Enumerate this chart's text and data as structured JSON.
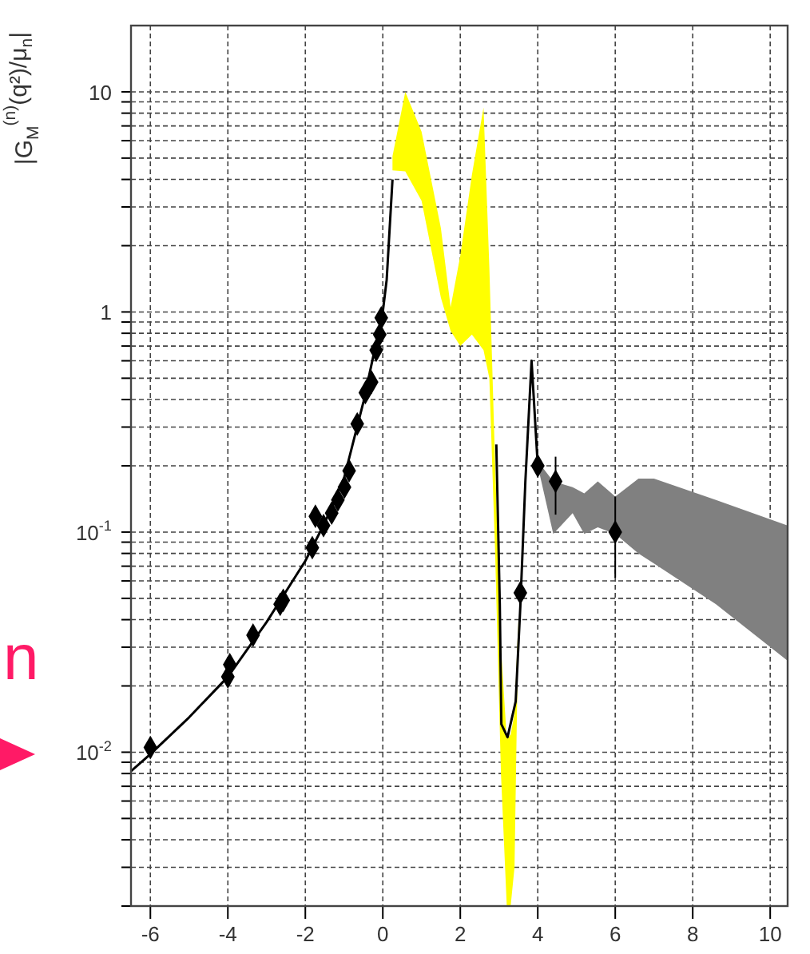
{
  "chart_data": {
    "type": "line",
    "ylabel": "|G$_{M}$$^{(n)}$(q²)/μ$_{n}$|",
    "annotations": [
      "n"
    ],
    "xlim": [
      -6.5,
      10.45
    ],
    "xticks": [
      -6,
      -4,
      -2,
      0,
      2,
      4,
      6,
      8,
      10
    ],
    "ylim": [
      0.002,
      20
    ],
    "log": "y",
    "grid": true,
    "yticks": [
      {
        "value": 0.002,
        "label": null
      },
      {
        "value": 0.003,
        "label": null
      },
      {
        "value": 0.004,
        "label": null
      },
      {
        "value": 0.005,
        "label": null
      },
      {
        "value": 0.006,
        "label": null
      },
      {
        "value": 0.007,
        "label": null
      },
      {
        "value": 0.008,
        "label": null
      },
      {
        "value": 0.009,
        "label": null
      },
      {
        "value": 0.01,
        "label": "10$^{-2}$"
      },
      {
        "value": 0.02,
        "label": null
      },
      {
        "value": 0.03,
        "label": null
      },
      {
        "value": 0.04,
        "label": null
      },
      {
        "value": 0.05,
        "label": null
      },
      {
        "value": 0.06,
        "label": null
      },
      {
        "value": 0.07,
        "label": null
      },
      {
        "value": 0.08,
        "label": null
      },
      {
        "value": 0.09,
        "label": null
      },
      {
        "value": 0.1,
        "label": "10$^{-1}$"
      },
      {
        "value": 0.2,
        "label": null
      },
      {
        "value": 0.3,
        "label": null
      },
      {
        "value": 0.4,
        "label": null
      },
      {
        "value": 0.5,
        "label": null
      },
      {
        "value": 0.6,
        "label": null
      },
      {
        "value": 0.7,
        "label": null
      },
      {
        "value": 0.8,
        "label": null
      },
      {
        "value": 0.9,
        "label": null
      },
      1,
      {
        "value": 2,
        "label": null
      },
      {
        "value": 3,
        "label": null
      },
      {
        "value": 4,
        "label": null
      },
      {
        "value": 5,
        "label": null
      },
      {
        "value": 6,
        "label": null
      },
      {
        "value": 7,
        "label": null
      },
      {
        "value": 8,
        "label": null
      },
      {
        "value": 9,
        "label": null
      },
      10
    ],
    "series": [
      {
        "type": "line",
        "color": "#ffff00",
        "x": [
          0.25,
          0.58,
          1.0,
          1.5,
          1.75,
          2.0,
          2.3,
          2.6,
          2.75,
          2.9,
          3.05,
          3.2,
          3.3,
          3.4,
          3.5
        ],
        "values": [
          null,
          null,
          null,
          null,
          null,
          null,
          null,
          null,
          null,
          null,
          null,
          null,
          null,
          null,
          null
        ],
        "upper": [
          5.1,
          10,
          6.6,
          2.4,
          1.05,
          1.8,
          4.2,
          8.5,
          1.6,
          0.2,
          0.03,
          0.0115,
          0.012,
          0.015,
          0.04
        ],
        "lower": [
          4.4,
          4.35,
          3.2,
          1.16,
          0.82,
          0.7,
          0.79,
          0.67,
          0.5,
          0.08,
          0.008,
          0.002,
          0.002,
          0.003,
          0.04
        ]
      },
      {
        "type": "line",
        "color": "#808080",
        "x": [
          4.0,
          4.4,
          4.9,
          5.2,
          5.55,
          6.0,
          6.6,
          7.0,
          8.6,
          10.45
        ],
        "values": [
          null,
          null,
          null,
          null,
          null,
          null,
          null,
          null,
          null,
          null
        ],
        "upper": [
          0.21,
          0.17,
          0.16,
          0.15,
          0.17,
          0.145,
          0.175,
          0.175,
          0.14,
          0.107
        ],
        "lower": [
          0.2,
          0.098,
          0.122,
          0.098,
          0.105,
          0.098,
          0.08,
          0.072,
          0.047,
          0.026
        ]
      },
      {
        "color": "#000000",
        "x": [
          -6.5,
          -6,
          -5,
          -4,
          -3,
          -2,
          -1.5,
          -1,
          -0.5,
          0,
          0.1,
          0.25
        ],
        "values": [
          0.0082,
          0.0098,
          0.0144,
          0.022,
          0.039,
          0.074,
          0.11,
          0.176,
          0.39,
          1.0,
          1.4,
          4
        ]
      },
      {
        "color": "#000000",
        "x": [
          2.93,
          3.02,
          3.06,
          3.22,
          3.43,
          3.55,
          3.68,
          3.84,
          4.0
        ],
        "values": [
          0.25,
          0.047,
          0.0134,
          0.0117,
          0.017,
          0.046,
          0.17,
          0.6,
          0.2
        ]
      },
      {
        "type": "scatter",
        "color": "#000000",
        "marker": "diamond",
        "x": [
          -6,
          -4,
          -3.95,
          -3.35,
          -2.65,
          -2.57,
          -1.82,
          -1.74,
          -1.53,
          -1.32,
          -1.16,
          -0.99,
          -0.87,
          -0.66,
          -0.45,
          -0.29,
          -0.17,
          -0.08,
          -0.04,
          3.55,
          4.0,
          4.46,
          6.0
        ],
        "values": [
          0.0105,
          0.022,
          0.025,
          0.034,
          0.047,
          0.049,
          0.085,
          0.118,
          0.107,
          0.122,
          0.14,
          0.16,
          0.19,
          0.31,
          0.43,
          0.48,
          0.67,
          0.79,
          0.94,
          0.053,
          0.2,
          0.17,
          0.1
        ],
        "errors": [
          null,
          null,
          null,
          null,
          null,
          null,
          null,
          null,
          null,
          null,
          null,
          null,
          null,
          null,
          null,
          null,
          null,
          null,
          null,
          null,
          null,
          [
            0.12,
            0.22
          ],
          [
            0.062,
            0.145
          ]
        ]
      }
    ]
  }
}
